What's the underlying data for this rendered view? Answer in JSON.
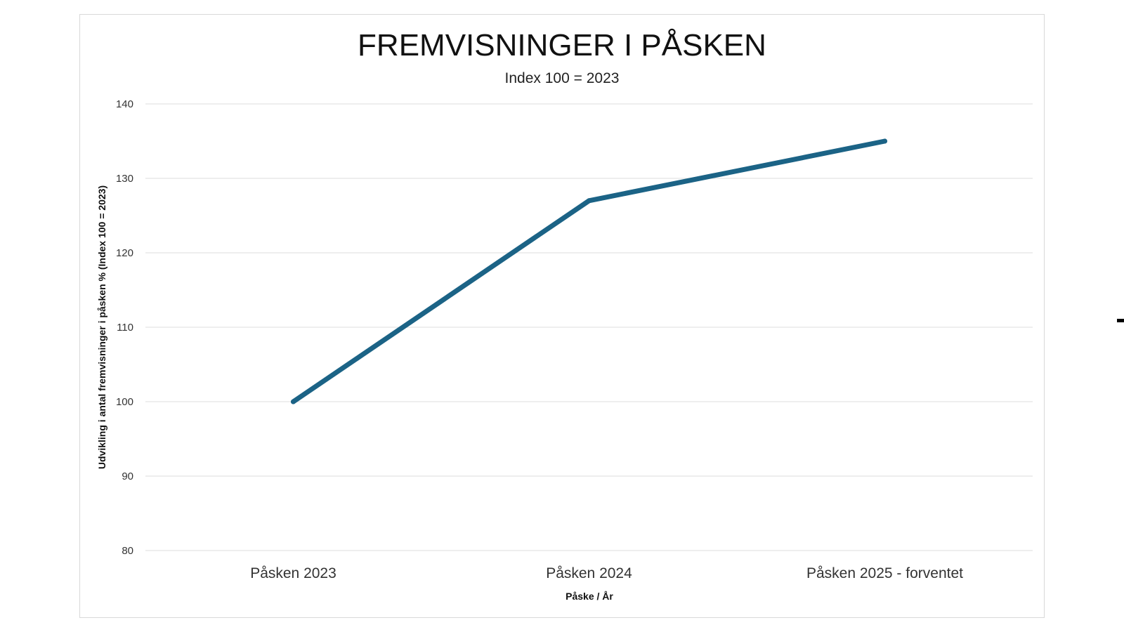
{
  "chart_data": {
    "type": "line",
    "title": "FREMVISNINGER I PÅSKEN",
    "subtitle": "Index 100 = 2023",
    "xlabel": "Påske / År",
    "ylabel": "Udvikling i antal fremvisninger i påsken % (Index 100 = 2023)",
    "categories": [
      "Påsken 2023",
      "Påsken 2024",
      "Påsken 2025 - forventet"
    ],
    "series": [
      {
        "values": [
          100,
          127,
          135
        ],
        "color": "#1b6386"
      }
    ],
    "ylim": [
      80,
      140
    ],
    "yticks": [
      "80",
      "90",
      "100",
      "110",
      "120",
      "130",
      "140"
    ],
    "grid": true,
    "legend": "none"
  }
}
